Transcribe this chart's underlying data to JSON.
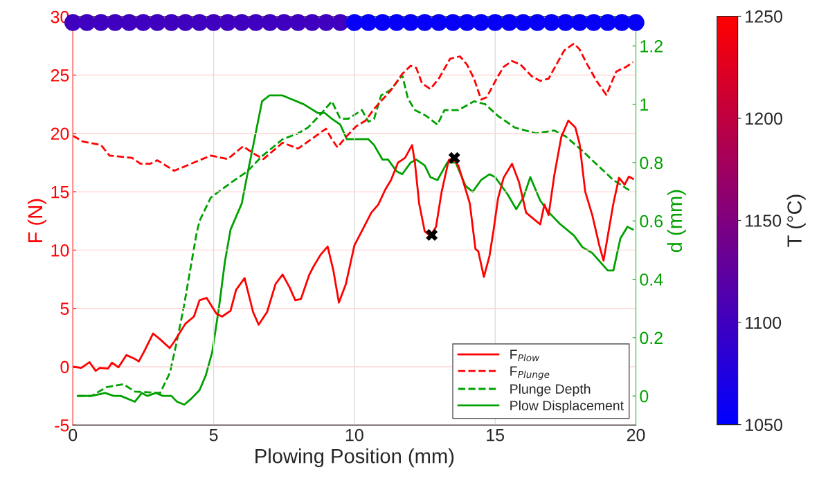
{
  "chart_data": {
    "type": "line",
    "xlabel": "Plowing Position (mm)",
    "ylabel": "F (N)",
    "y2label": "d (mm)",
    "clabel": "T (°C)",
    "xlim": [
      0,
      20
    ],
    "xticks": [
      0,
      5,
      10,
      15,
      20
    ],
    "ylim": [
      -5,
      30
    ],
    "yticks": [
      -5,
      0,
      5,
      10,
      15,
      20,
      25,
      30
    ],
    "y2lim": [
      -0.1,
      1.3
    ],
    "y2ticks": [
      0,
      0.2,
      0.4,
      0.6,
      0.8,
      1,
      1.2
    ],
    "clim": [
      1050,
      1250
    ],
    "cticks": [
      1050,
      1100,
      1150,
      1200,
      1250
    ],
    "grid": true,
    "legend": "bottom right",
    "series": [
      {
        "name": "F$_{Plow}$",
        "color": "#ff0000",
        "line_style": "solid",
        "x": [
          0,
          0.3,
          0.59,
          0.81,
          0.96,
          1.25,
          1.39,
          1.62,
          1.9,
          2.18,
          2.34,
          2.52,
          2.85,
          3.1,
          3.44,
          3.6,
          4.0,
          4.3,
          4.5,
          4.75,
          5.1,
          5.3,
          5.6,
          5.8,
          6.1,
          6.4,
          6.6,
          6.9,
          7.2,
          7.45,
          7.7,
          7.9,
          8.1,
          8.4,
          8.55,
          8.8,
          9.05,
          9.25,
          9.45,
          9.7,
          10.0,
          10.3,
          10.6,
          10.85,
          11.1,
          11.3,
          11.55,
          11.8,
          12.05,
          12.15,
          12.3,
          12.5,
          12.7,
          12.9,
          13.1,
          13.35,
          13.5,
          13.7,
          14.1,
          14.3,
          14.4,
          14.6,
          14.8,
          14.95,
          15.1,
          15.3,
          15.6,
          15.85,
          16.1,
          16.35,
          16.6,
          16.75,
          16.9,
          17.1,
          17.35,
          17.6,
          17.85,
          18.0,
          18.2,
          18.45,
          18.7,
          18.85,
          19.0,
          19.2,
          19.4,
          19.6,
          19.75,
          19.9
        ],
        "values": [
          0,
          -0.1,
          0.4,
          -0.35,
          -0.1,
          -0.15,
          0.35,
          -0.05,
          1.0,
          0.7,
          0.45,
          1.25,
          2.85,
          2.35,
          1.6,
          2.15,
          3.7,
          4.3,
          5.7,
          5.9,
          4.55,
          4.3,
          4.8,
          6.6,
          7.6,
          4.7,
          3.6,
          4.7,
          7.1,
          7.9,
          6.8,
          5.7,
          5.8,
          7.9,
          8.6,
          9.6,
          10.3,
          8.3,
          5.5,
          7.1,
          10.4,
          11.8,
          13.2,
          13.9,
          15.2,
          16.0,
          17.5,
          17.9,
          19.0,
          17.5,
          14.0,
          11.6,
          11.2,
          12.0,
          15.0,
          17.7,
          17.9,
          17.2,
          14.0,
          10.1,
          9.9,
          7.7,
          9.5,
          11.8,
          14.4,
          16.2,
          17.4,
          15.8,
          13.2,
          12.7,
          12.2,
          13.9,
          13.0,
          16.4,
          19.7,
          21.1,
          20.5,
          19.1,
          15.0,
          13.0,
          10.4,
          9.1,
          11.2,
          14.0,
          16.2,
          15.6,
          16.3,
          16.1
        ]
      },
      {
        "name": "F$_{Plunge}$",
        "color": "#ff0000",
        "line_style": "dashed",
        "x": [
          0,
          0.36,
          1.0,
          1.3,
          2.1,
          2.4,
          2.75,
          3.0,
          3.6,
          4.2,
          4.9,
          5.5,
          6.05,
          6.4,
          6.77,
          7.45,
          8.0,
          8.99,
          9.2,
          9.4,
          9.7,
          10.06,
          10.4,
          10.7,
          11.3,
          11.7,
          12.0,
          12.2,
          12.4,
          12.7,
          13.0,
          13.4,
          13.75,
          14.0,
          14.25,
          14.5,
          14.7,
          15.1,
          15.3,
          15.6,
          15.9,
          16.3,
          16.6,
          16.9,
          17.45,
          17.8,
          18.0,
          18.25,
          18.6,
          18.95,
          19.3,
          19.65,
          19.9
        ],
        "values": [
          19.8,
          19.3,
          19.0,
          18.1,
          17.9,
          17.4,
          17.4,
          17.7,
          16.8,
          17.4,
          18.1,
          17.8,
          18.9,
          18.3,
          17.8,
          19.2,
          18.7,
          20.4,
          19.5,
          18.8,
          19.7,
          20.6,
          21.1,
          22.1,
          23.7,
          25.1,
          25.8,
          25.6,
          24.3,
          23.8,
          24.7,
          26.4,
          26.6,
          25.9,
          24.7,
          22.9,
          23.1,
          24.9,
          25.7,
          26.2,
          25.9,
          24.9,
          24.5,
          24.7,
          27.1,
          27.7,
          27.2,
          26.0,
          24.5,
          23.3,
          25.3,
          25.7,
          26.1
        ]
      },
      {
        "name": "Plunge Depth",
        "color": "#00a000",
        "line_style": "dashed",
        "axis": "y2",
        "x": [
          0.17,
          0.66,
          1.2,
          1.8,
          2.2,
          3.1,
          3.45,
          3.7,
          3.95,
          4.2,
          4.4,
          4.5,
          4.9,
          5.6,
          6.2,
          6.7,
          7.45,
          8.0,
          8.35,
          8.75,
          9.2,
          9.5,
          9.78,
          10.27,
          10.5,
          10.7,
          10.95,
          11.3,
          11.7,
          11.9,
          12.15,
          12.55,
          12.95,
          13.2,
          13.7,
          14.25,
          14.65,
          15.1,
          15.7,
          16.45,
          17.1,
          17.5,
          18.1,
          18.65,
          19.2,
          19.85
        ],
        "values": [
          0.0,
          0.0,
          0.03,
          0.04,
          0.015,
          0.01,
          0.08,
          0.19,
          0.31,
          0.45,
          0.56,
          0.6,
          0.68,
          0.73,
          0.77,
          0.82,
          0.88,
          0.9,
          0.92,
          0.96,
          1.01,
          0.95,
          0.95,
          0.98,
          0.94,
          0.95,
          1.03,
          1.05,
          1.1,
          1.02,
          0.98,
          0.96,
          0.93,
          0.98,
          0.98,
          1.01,
          1.0,
          0.96,
          0.92,
          0.9,
          0.91,
          0.89,
          0.84,
          0.79,
          0.74,
          0.7
        ]
      },
      {
        "name": "Plow Displacement",
        "color": "#00a000",
        "line_style": "solid",
        "axis": "y2",
        "x": [
          0.17,
          0.66,
          1.15,
          1.45,
          1.7,
          2.2,
          2.45,
          2.65,
          2.95,
          3.2,
          3.5,
          3.7,
          3.96,
          4.2,
          4.5,
          4.72,
          4.95,
          5.2,
          5.4,
          5.6,
          6.0,
          6.2,
          6.45,
          6.72,
          6.98,
          7.45,
          7.7,
          8.2,
          8.7,
          8.95,
          9.2,
          9.5,
          9.73,
          10.5,
          10.7,
          11.0,
          11.2,
          11.5,
          11.7,
          12.0,
          12.2,
          12.5,
          12.7,
          12.95,
          13.3,
          13.6,
          13.95,
          14.2,
          14.5,
          14.8,
          15.0,
          15.45,
          15.75,
          16.0,
          16.25,
          16.6,
          16.9,
          17.3,
          17.8,
          18.1,
          18.45,
          19.0,
          19.2,
          19.45,
          19.7,
          19.9
        ],
        "values": [
          0.0,
          0.0,
          0.01,
          0.0,
          0.0,
          -0.02,
          0.01,
          0.0,
          0.01,
          0.0,
          0.0,
          -0.02,
          -0.03,
          -0.01,
          0.02,
          0.07,
          0.15,
          0.31,
          0.46,
          0.57,
          0.66,
          0.76,
          0.88,
          1.01,
          1.03,
          1.03,
          1.02,
          1.0,
          0.97,
          0.97,
          0.95,
          0.93,
          0.88,
          0.88,
          0.86,
          0.81,
          0.81,
          0.77,
          0.76,
          0.8,
          0.81,
          0.79,
          0.75,
          0.74,
          0.8,
          0.8,
          0.72,
          0.7,
          0.74,
          0.76,
          0.75,
          0.69,
          0.64,
          0.68,
          0.75,
          0.67,
          0.63,
          0.59,
          0.55,
          0.51,
          0.49,
          0.43,
          0.43,
          0.54,
          0.58,
          0.57
        ]
      },
      {
        "type": "scatter",
        "marker": "cross",
        "color": "#000000",
        "x": [
          12.75,
          13.55
        ],
        "values": [
          11.3,
          17.9
        ]
      },
      {
        "type": "scatter",
        "marker": "circle",
        "colors": [
          "#4000bf",
          "#4000bf",
          "#4000bf",
          "#4000bf",
          "#4000bf",
          "#4000bf",
          "#4000bf",
          "#4000bf",
          "#4000bf",
          "#4000bf",
          "#4000bf",
          "#4000bf",
          "#4000bf",
          "#4000bf",
          "#4000bf",
          "#4000bf",
          "#4000bf",
          "#4000bf",
          "#4000bf",
          "#4000bf",
          "#0600f9",
          "#0600f9",
          "#0600f9",
          "#0600f9",
          "#0600f9",
          "#0600f9",
          "#0600f9",
          "#0600f9",
          "#0600f9",
          "#0600f9",
          "#0600f9",
          "#0600f9",
          "#0600f9",
          "#0600f9",
          "#0600f9",
          "#0600f9",
          "#0600f9",
          "#0600f9",
          "#0600f9",
          "#0600f9",
          "#0600f9"
        ],
        "x": [
          0,
          0.5,
          1,
          1.5,
          2,
          2.5,
          3,
          3.5,
          4,
          4.5,
          5,
          5.5,
          6,
          6.5,
          7,
          7.5,
          8,
          8.5,
          9,
          9.5,
          10,
          10.5,
          11,
          11.5,
          12,
          12.5,
          13,
          13.5,
          14,
          14.5,
          15,
          15.5,
          16,
          16.5,
          17,
          17.5,
          18,
          18.5,
          19,
          19.5,
          20
        ],
        "values": [
          29.5,
          29.5,
          29.5,
          29.5,
          29.5,
          29.5,
          29.5,
          29.5,
          29.5,
          29.5,
          29.5,
          29.5,
          29.5,
          29.5,
          29.5,
          29.5,
          29.5,
          29.5,
          29.5,
          29.5,
          29.5,
          29.5,
          29.5,
          29.5,
          29.5,
          29.5,
          29.5,
          29.5,
          29.5,
          29.5,
          29.5,
          29.5,
          29.5,
          29.5,
          29.5,
          29.5,
          29.5,
          29.5,
          29.5,
          29.5,
          29.5
        ],
        "cvalues": [
          1100,
          1100,
          1100,
          1100,
          1100,
          1100,
          1100,
          1100,
          1100,
          1100,
          1100,
          1100,
          1100,
          1100,
          1100,
          1100,
          1100,
          1100,
          1100,
          1100,
          1055,
          1055,
          1055,
          1055,
          1055,
          1055,
          1055,
          1055,
          1055,
          1055,
          1055,
          1055,
          1055,
          1055,
          1055,
          1055,
          1055,
          1055,
          1055,
          1055,
          1055
        ]
      }
    ]
  }
}
